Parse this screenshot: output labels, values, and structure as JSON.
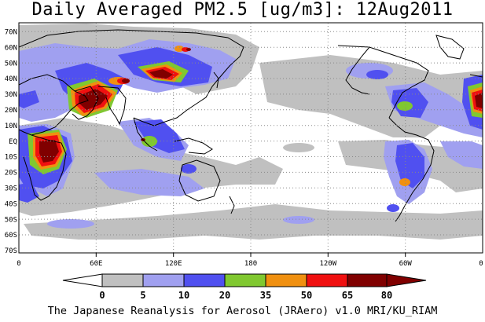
{
  "title": "Daily Averaged PM2.5 [ug/m3]: 12Aug2011",
  "footer": "The Japanese Reanalysis for Aerosol (JRAero) v1.0 MRI/KU_RIAM",
  "lat_labels": [
    "70N",
    "60N",
    "50N",
    "40N",
    "30N",
    "20N",
    "10N",
    "EQ",
    "10S",
    "20S",
    "30S",
    "40S",
    "50S",
    "60S",
    "70S"
  ],
  "lon_labels": [
    "0",
    "60E",
    "120E",
    "180",
    "120W",
    "60W",
    "0"
  ],
  "colorbar": {
    "levels": [
      "0",
      "5",
      "10",
      "20",
      "35",
      "50",
      "65",
      "80"
    ],
    "colors": [
      "#ffffff",
      "#c0c0c0",
      "#a0a0f0",
      "#5050f0",
      "#80c830",
      "#f09010",
      "#f01010",
      "#800000"
    ]
  },
  "colors": {
    "land_outline": "#000000",
    "grid": "#888888",
    "level_5": "#c0c0c0",
    "level_10": "#a0a0f0",
    "level_20": "#5050f0",
    "level_35": "#80c830",
    "level_50": "#f09010",
    "level_65": "#f01010",
    "level_80": "#800000"
  }
}
